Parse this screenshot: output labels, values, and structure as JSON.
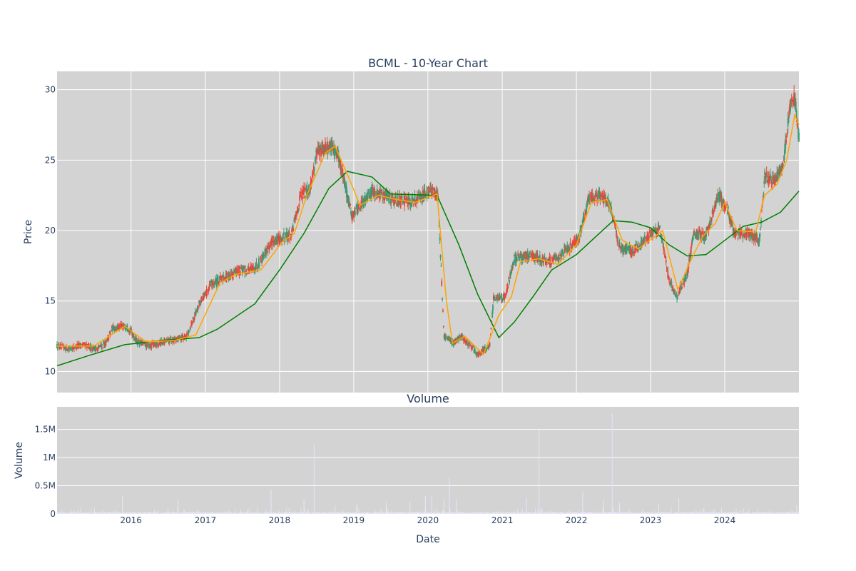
{
  "chart_data": [
    {
      "type": "candlestick",
      "title": "BCML - 10-Year Chart",
      "ylabel": "Price",
      "xlabel": "",
      "ylim": [
        8.5,
        31.3
      ],
      "xlim": [
        "2015-01-02",
        "2024-12-31"
      ],
      "yticks": [
        10,
        15,
        20,
        25,
        30
      ],
      "grid": true,
      "colors": {
        "increasing": "#3d9970",
        "decreasing": "#e8473a",
        "ma_short": "#ffa500",
        "ma_long": "#008000",
        "background": "#d3d3d3"
      },
      "price_keypoints": [
        [
          "2015-01-02",
          11.8
        ],
        [
          "2015-03-01",
          11.6
        ],
        [
          "2015-05-01",
          11.9
        ],
        [
          "2015-07-15",
          11.6
        ],
        [
          "2015-09-01",
          12.0
        ],
        [
          "2015-10-01",
          13.1
        ],
        [
          "2015-12-15",
          13.2
        ],
        [
          "2016-02-01",
          12.1
        ],
        [
          "2016-04-01",
          11.8
        ],
        [
          "2016-06-01",
          12.1
        ],
        [
          "2016-08-15",
          12.3
        ],
        [
          "2016-10-01",
          12.5
        ],
        [
          "2016-12-01",
          14.8
        ],
        [
          "2017-02-01",
          16.2
        ],
        [
          "2017-06-01",
          17.1
        ],
        [
          "2017-09-01",
          17.3
        ],
        [
          "2017-12-01",
          19.3
        ],
        [
          "2018-03-01",
          19.7
        ],
        [
          "2018-04-15",
          22.5
        ],
        [
          "2018-06-01",
          23.0
        ],
        [
          "2018-07-01",
          25.5
        ],
        [
          "2018-09-01",
          26.0
        ],
        [
          "2018-10-15",
          25.5
        ],
        [
          "2018-12-24",
          21.0
        ],
        [
          "2019-01-15",
          21.5
        ],
        [
          "2019-04-01",
          22.8
        ],
        [
          "2019-07-01",
          22.3
        ],
        [
          "2019-10-01",
          22.0
        ],
        [
          "2020-01-15",
          22.8
        ],
        [
          "2020-02-20",
          22.5
        ],
        [
          "2020-03-20",
          12.5
        ],
        [
          "2020-05-01",
          12.0
        ],
        [
          "2020-06-15",
          12.5
        ],
        [
          "2020-09-01",
          11.2
        ],
        [
          "2020-11-01",
          11.8
        ],
        [
          "2020-11-20",
          15.3
        ],
        [
          "2021-01-15",
          15.3
        ],
        [
          "2021-03-01",
          18.0
        ],
        [
          "2021-06-01",
          18.2
        ],
        [
          "2021-09-01",
          17.8
        ],
        [
          "2021-12-01",
          18.8
        ],
        [
          "2022-01-15",
          19.5
        ],
        [
          "2022-03-01",
          22.3
        ],
        [
          "2022-05-01",
          22.5
        ],
        [
          "2022-06-15",
          21.8
        ],
        [
          "2022-08-01",
          18.8
        ],
        [
          "2022-10-01",
          18.5
        ],
        [
          "2022-12-15",
          19.5
        ],
        [
          "2023-02-15",
          20.3
        ],
        [
          "2023-04-01",
          16.5
        ],
        [
          "2023-05-10",
          15.3
        ],
        [
          "2023-07-01",
          17.0
        ],
        [
          "2023-08-01",
          19.8
        ],
        [
          "2023-10-01",
          19.6
        ],
        [
          "2023-12-01",
          22.5
        ],
        [
          "2024-01-15",
          21.5
        ],
        [
          "2024-02-15",
          19.8
        ],
        [
          "2024-05-01",
          19.8
        ],
        [
          "2024-06-20",
          19.3
        ],
        [
          "2024-07-15",
          23.8
        ],
        [
          "2024-09-01",
          23.5
        ],
        [
          "2024-10-15",
          24.8
        ],
        [
          "2024-11-15",
          28.5
        ],
        [
          "2024-12-10",
          29.5
        ],
        [
          "2024-12-31",
          26.5
        ]
      ],
      "ma_short": [
        [
          "2015-01-02",
          11.8
        ],
        [
          "2015-07-01",
          11.8
        ],
        [
          "2015-12-01",
          13.2
        ],
        [
          "2016-03-15",
          12.1
        ],
        [
          "2016-08-01",
          12.2
        ],
        [
          "2016-11-15",
          12.6
        ],
        [
          "2017-01-15",
          14.5
        ],
        [
          "2017-03-15",
          16.3
        ],
        [
          "2017-06-01",
          16.9
        ],
        [
          "2017-10-01",
          17.2
        ],
        [
          "2018-01-15",
          19.2
        ],
        [
          "2018-03-15",
          19.8
        ],
        [
          "2018-05-15",
          22.5
        ],
        [
          "2018-08-15",
          25.5
        ],
        [
          "2018-10-01",
          26.0
        ],
        [
          "2018-12-15",
          23.5
        ],
        [
          "2019-02-01",
          21.8
        ],
        [
          "2019-05-01",
          22.5
        ],
        [
          "2019-08-01",
          22.2
        ],
        [
          "2019-11-01",
          22.0
        ],
        [
          "2020-02-15",
          22.6
        ],
        [
          "2020-04-01",
          15.0
        ],
        [
          "2020-05-01",
          12.0
        ],
        [
          "2020-07-01",
          12.5
        ],
        [
          "2020-10-01",
          11.2
        ],
        [
          "2020-12-15",
          14.0
        ],
        [
          "2021-02-15",
          15.3
        ],
        [
          "2021-04-01",
          17.8
        ],
        [
          "2021-07-01",
          18.0
        ],
        [
          "2021-10-01",
          17.6
        ],
        [
          "2022-01-01",
          19.0
        ],
        [
          "2022-03-15",
          22.0
        ],
        [
          "2022-06-01",
          22.2
        ],
        [
          "2022-08-15",
          19.3
        ],
        [
          "2022-11-01",
          18.7
        ],
        [
          "2023-01-15",
          19.5
        ],
        [
          "2023-03-01",
          20.0
        ],
        [
          "2023-05-15",
          15.8
        ],
        [
          "2023-07-15",
          17.8
        ],
        [
          "2023-09-15",
          19.6
        ],
        [
          "2023-11-15",
          20.5
        ],
        [
          "2024-01-01",
          22.0
        ],
        [
          "2024-03-01",
          20.0
        ],
        [
          "2024-06-01",
          19.9
        ],
        [
          "2024-07-15",
          22.5
        ],
        [
          "2024-09-15",
          23.3
        ],
        [
          "2024-11-01",
          25.0
        ],
        [
          "2024-12-10",
          28.2
        ],
        [
          "2024-12-31",
          27.5
        ]
      ],
      "ma_long": [
        [
          "2015-01-02",
          10.4
        ],
        [
          "2015-06-01",
          11.1
        ],
        [
          "2015-12-01",
          11.9
        ],
        [
          "2016-06-01",
          12.2
        ],
        [
          "2016-12-01",
          12.4
        ],
        [
          "2017-03-01",
          13.0
        ],
        [
          "2017-09-01",
          14.8
        ],
        [
          "2018-01-01",
          17.2
        ],
        [
          "2018-05-01",
          19.8
        ],
        [
          "2018-09-01",
          23.0
        ],
        [
          "2018-12-01",
          24.2
        ],
        [
          "2019-04-01",
          23.8
        ],
        [
          "2019-07-01",
          22.6
        ],
        [
          "2020-02-15",
          22.5
        ],
        [
          "2020-06-01",
          19.0
        ],
        [
          "2020-09-01",
          15.5
        ],
        [
          "2020-12-15",
          12.4
        ],
        [
          "2021-03-01",
          13.5
        ],
        [
          "2021-06-01",
          15.3
        ],
        [
          "2021-09-01",
          17.2
        ],
        [
          "2022-01-01",
          18.3
        ],
        [
          "2022-04-01",
          19.5
        ],
        [
          "2022-07-01",
          20.7
        ],
        [
          "2022-10-01",
          20.6
        ],
        [
          "2023-01-01",
          20.2
        ],
        [
          "2023-04-01",
          19.0
        ],
        [
          "2023-07-01",
          18.2
        ],
        [
          "2023-10-01",
          18.3
        ],
        [
          "2024-01-01",
          19.3
        ],
        [
          "2024-04-01",
          20.3
        ],
        [
          "2024-07-01",
          20.6
        ],
        [
          "2024-10-01",
          21.3
        ],
        [
          "2024-12-31",
          22.8
        ]
      ]
    },
    {
      "type": "bar",
      "title": "Volume",
      "ylabel": "Volume",
      "xlabel": "Date",
      "ylim": [
        0,
        1900000
      ],
      "yticks": [
        0,
        500000,
        1000000,
        1500000
      ],
      "ytick_labels": [
        "0",
        "0.5M",
        "1M",
        "1.5M"
      ],
      "xticks": [
        "2016-01-01",
        "2017-01-01",
        "2018-01-01",
        "2019-01-01",
        "2020-01-01",
        "2021-01-01",
        "2022-01-01",
        "2023-01-01",
        "2024-01-01"
      ],
      "xtick_labels": [
        "2016",
        "2017",
        "2018",
        "2019",
        "2020",
        "2021",
        "2022",
        "2023",
        "2024"
      ],
      "colors": {
        "bar": "#e6e6fa",
        "background": "#d3d3d3"
      },
      "volume_spikes": [
        [
          "2015-11-20",
          320000
        ],
        [
          "2016-08-20",
          240000
        ],
        [
          "2017-11-20",
          430000
        ],
        [
          "2018-05-01",
          260000
        ],
        [
          "2018-06-20",
          1230000
        ],
        [
          "2018-10-01",
          150000
        ],
        [
          "2019-01-15",
          180000
        ],
        [
          "2019-06-10",
          200000
        ],
        [
          "2019-10-05",
          220000
        ],
        [
          "2019-12-20",
          310000
        ],
        [
          "2020-01-20",
          330000
        ],
        [
          "2020-03-20",
          260000
        ],
        [
          "2020-04-15",
          640000
        ],
        [
          "2020-05-20",
          250000
        ],
        [
          "2021-05-01",
          280000
        ],
        [
          "2021-07-01",
          1500000
        ],
        [
          "2022-02-01",
          400000
        ],
        [
          "2022-05-15",
          250000
        ],
        [
          "2022-06-26",
          1780000
        ],
        [
          "2022-08-01",
          200000
        ],
        [
          "2023-02-10",
          180000
        ],
        [
          "2023-05-20",
          280000
        ],
        [
          "2024-04-01",
          100000
        ],
        [
          "2024-12-20",
          150000
        ]
      ]
    }
  ]
}
